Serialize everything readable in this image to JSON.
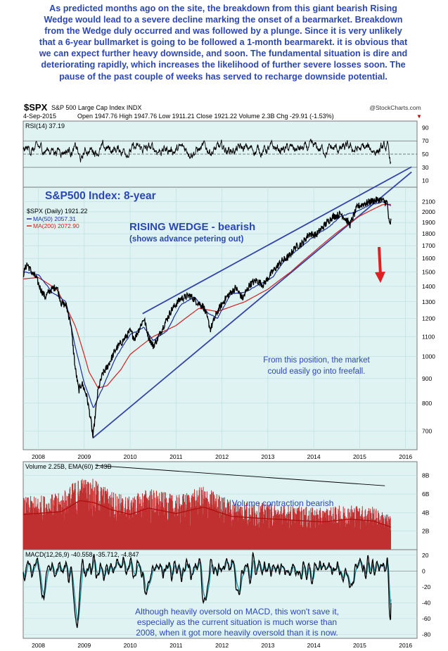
{
  "commentary": "As predicted months ago on the site, the breakdown from this giant bearish Rising Wedge would lead to a severe decline marking the onset of a bearmarket. Breakdown from the Wedge duly occurred and was followed by a plunge. Since it is very unlikely that a 6-year bullmarket is going to be followed a 1-month bearmarekt. it is obvious that we can expect further heavy downside, and soon. The fundamental situation is dire and deteriorating rapidly, which increases the likelihood of further severe losses soon. The pause of the past couple of weeks has served to recharge downside potential.",
  "header": {
    "symbol": "$SPX",
    "name": "S&P 500 Large Cap Index INDX",
    "date": "4-Sep-2015",
    "quote": "Open 1947.76 High 1947.76 Low 1911.21 Close 1921.22 Volume 2.3B Chg -29.91 (-1.53%)",
    "quote_arrow": "▼",
    "copyright": "@StockCharts.com"
  },
  "colors": {
    "panel_bg": "#dff3f3",
    "annotation": "#2b47b7",
    "price": "#000000",
    "ma50": "#1f2f9e",
    "ma200": "#d42020",
    "volume": "#c03030",
    "macd_signal": "#1f8fa0",
    "down_arrow": "#e02020"
  },
  "chart_data": [
    {
      "type": "line",
      "panel": "rsi",
      "legend": "RSI(14) 37.19",
      "ylim": [
        0,
        100
      ],
      "tick_labels": [
        "90",
        "70",
        "50",
        "30",
        "10"
      ],
      "reference_lines": [
        70,
        50,
        30
      ],
      "last_value": 37.19
    },
    {
      "type": "line",
      "panel": "price",
      "scale": "log",
      "ylim": [
        640,
        2250
      ],
      "tick_labels": [
        "2100",
        "2000",
        "1900",
        "1800",
        "1700",
        "1600",
        "1500",
        "1400",
        "1300",
        "1200",
        "1100",
        "1000",
        "900",
        "800",
        "700"
      ],
      "x_tick_labels": [
        "2008",
        "2009",
        "2010",
        "2011",
        "2012",
        "2013",
        "2014",
        "2015",
        "2016"
      ],
      "legend": [
        "$SPX (Daily) 1921.22",
        "MA(50) 2057.31",
        "MA(200) 2072.90"
      ],
      "series": [
        {
          "name": "$SPX (Daily)",
          "last": 1921.22,
          "x": [
            2007.67,
            2007.75,
            2007.85,
            2007.95,
            2008.05,
            2008.15,
            2008.25,
            2008.4,
            2008.5,
            2008.6,
            2008.7,
            2008.8,
            2008.88,
            2008.95,
            2009.05,
            2009.15,
            2009.19,
            2009.3,
            2009.4,
            2009.5,
            2009.7,
            2009.85,
            2010.0,
            2010.1,
            2010.3,
            2010.4,
            2010.5,
            2010.6,
            2010.75,
            2010.9,
            2011.1,
            2011.3,
            2011.45,
            2011.6,
            2011.75,
            2011.9,
            2012.1,
            2012.3,
            2012.45,
            2012.6,
            2012.75,
            2012.9,
            2013.1,
            2013.3,
            2013.45,
            2013.6,
            2013.75,
            2013.9,
            2014.05,
            2014.2,
            2014.4,
            2014.6,
            2014.79,
            2014.95,
            2015.1,
            2015.3,
            2015.45,
            2015.55,
            2015.6,
            2015.64,
            2015.66,
            2015.68
          ],
          "y": [
            1480,
            1560,
            1500,
            1460,
            1380,
            1330,
            1370,
            1400,
            1290,
            1280,
            1180,
            950,
            850,
            880,
            830,
            730,
            677,
            850,
            920,
            950,
            1040,
            1080,
            1130,
            1090,
            1200,
            1100,
            1050,
            1090,
            1170,
            1250,
            1320,
            1340,
            1300,
            1270,
            1140,
            1240,
            1330,
            1390,
            1320,
            1410,
            1440,
            1410,
            1500,
            1580,
            1610,
            1690,
            1720,
            1800,
            1790,
            1860,
            1950,
            1980,
            1880,
            2050,
            2080,
            2110,
            2120,
            2100,
            2090,
            1900,
            1870,
            1921
          ]
        },
        {
          "name": "MA(50)",
          "last": 2057.31,
          "x": [
            2007.67,
            2008.0,
            2008.3,
            2008.6,
            2008.8,
            2009.0,
            2009.2,
            2009.4,
            2009.7,
            2010.0,
            2010.3,
            2010.5,
            2010.8,
            2011.1,
            2011.4,
            2011.7,
            2011.9,
            2012.2,
            2012.5,
            2012.8,
            2013.1,
            2013.4,
            2013.7,
            2014.0,
            2014.3,
            2014.6,
            2014.9,
            2015.2,
            2015.5,
            2015.68
          ],
          "y": [
            1500,
            1480,
            1360,
            1300,
            1050,
            880,
            780,
            860,
            1000,
            1110,
            1150,
            1080,
            1130,
            1280,
            1330,
            1230,
            1200,
            1350,
            1360,
            1410,
            1460,
            1600,
            1680,
            1780,
            1850,
            1960,
            2000,
            2060,
            2100,
            2057
          ]
        },
        {
          "name": "MA(200)",
          "last": 2072.9,
          "x": [
            2007.67,
            2008.0,
            2008.4,
            2008.8,
            2009.1,
            2009.3,
            2009.5,
            2009.8,
            2010.0,
            2010.5,
            2011.0,
            2011.5,
            2011.9,
            2012.5,
            2013.0,
            2013.5,
            2014.0,
            2014.5,
            2015.0,
            2015.5,
            2015.68
          ],
          "y": [
            1450,
            1460,
            1380,
            1160,
            930,
            860,
            870,
            940,
            1010,
            1100,
            1160,
            1260,
            1240,
            1300,
            1380,
            1500,
            1650,
            1810,
            1960,
            2070,
            2073
          ]
        }
      ],
      "wedge": {
        "upper": {
          "x": [
            2010.27,
            2016.13
          ],
          "y": [
            1228,
            2480
          ]
        },
        "lower": {
          "x": [
            2009.19,
            2016.13
          ],
          "y": [
            677,
            2420
          ]
        },
        "lower_from_2008": {
          "x": [
            2007.67,
            2009.19
          ],
          "y": [
            1560,
            830
          ]
        }
      },
      "annotations": {
        "index_label": "S&P500 Index: 8-year",
        "wedge_title": "RISING WEDGE - bearish",
        "wedge_subtitle": "(shows advance petering out)",
        "freefall_line1": "From this position, the market",
        "freefall_line2": "could easily go into freefall."
      }
    },
    {
      "type": "bar",
      "panel": "volume",
      "legend": "Volume 2.25B, EMA(60) 2.43B",
      "ylim": [
        0,
        9.5
      ],
      "tick_labels": [
        "8B",
        "6B",
        "4B",
        "2B"
      ],
      "annotation": "Volume contraction bearish",
      "trendline": {
        "x": [
          2009.25,
          2015.55
        ],
        "y": [
          9.1,
          6.9
        ]
      },
      "ema": {
        "x": [
          2007.67,
          2008.5,
          2008.9,
          2009.2,
          2009.6,
          2010.0,
          2010.4,
          2011.0,
          2011.6,
          2012.2,
          2012.8,
          2013.5,
          2014.2,
          2014.8,
          2015.3,
          2015.68
        ],
        "y": [
          3.8,
          4.1,
          5.3,
          5.1,
          4.3,
          3.8,
          4.5,
          3.9,
          4.6,
          3.6,
          3.4,
          3.2,
          3.0,
          3.3,
          3.1,
          2.43
        ]
      },
      "last_value": 2.25,
      "last_ema": 2.43
    },
    {
      "type": "line",
      "panel": "macd",
      "legend": "MACD(12,26,9) -40.558, -35.712, -4.847",
      "ylim": [
        -85,
        27
      ],
      "tick_labels": [
        "20",
        "0",
        "-20",
        "-40",
        "-60",
        "-80"
      ],
      "x_tick_labels": [
        "2008",
        "2009",
        "2010",
        "2011",
        "2012",
        "2013",
        "2014",
        "2015",
        "2016"
      ],
      "values": {
        "macd": -40.558,
        "signal": -35.712,
        "histogram": -4.847
      },
      "annotation_lines": [
        "Although heavily oversold on MACD, this won't save it,",
        "especially as the current situation is much worse than",
        "2008, when it got more heavily oversold than it is now."
      ]
    }
  ]
}
